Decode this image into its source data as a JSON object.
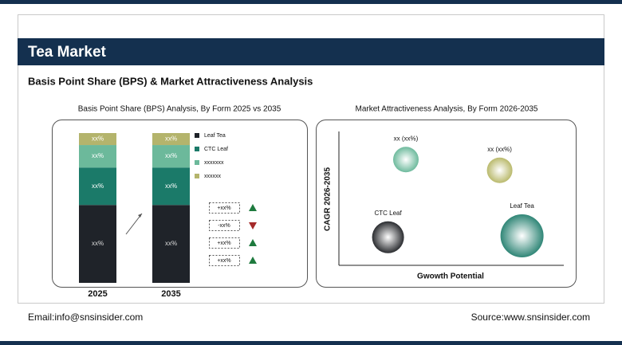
{
  "header": {
    "title": "Tea Market",
    "subtitle": "Basis Point Share (BPS) & Market Attractiveness Analysis"
  },
  "chart_data": [
    {
      "type": "stacked-bar",
      "title": "Basis Point Share (BPS) Analysis, By Form 2025 vs 2035",
      "categories": [
        "2025",
        "2035"
      ],
      "ylim": [
        0,
        100
      ],
      "series": [
        {
          "name": "Leaf Tea",
          "color": "#1f2329",
          "values": [
            52,
            52
          ],
          "value_labels": [
            "xx%",
            "xx%"
          ]
        },
        {
          "name": "CTC Leaf",
          "color": "#1b7a69",
          "values": [
            25,
            25
          ],
          "value_labels": [
            "xx%",
            "xx%"
          ]
        },
        {
          "name": "xxxxxxx",
          "color": "#6cb99b",
          "values": [
            15,
            15
          ],
          "value_labels": [
            "xx%",
            "xx%"
          ]
        },
        {
          "name": "xxxxxx",
          "color": "#b4b46c",
          "values": [
            8,
            8
          ],
          "value_labels": [
            "xx%",
            "xx%"
          ]
        }
      ],
      "changes": [
        {
          "label": "+xx%",
          "direction": "up"
        },
        {
          "label": "-xx%",
          "direction": "down"
        },
        {
          "label": "+xx%",
          "direction": "up"
        },
        {
          "label": "+xx%",
          "direction": "up"
        }
      ]
    },
    {
      "type": "bubble",
      "title": "Market Attractiveness Analysis, By Form 2026-2035",
      "x_label": "Gwowth Potential",
      "y_label": "CAGR 2026-2035",
      "xlim": [
        0,
        100
      ],
      "ylim": [
        0,
        100
      ],
      "points": [
        {
          "label": "xx (xx%)",
          "x": 30,
          "y": 79,
          "size": 16,
          "color": "#5fb393"
        },
        {
          "label": "xx (xx%)",
          "x": 72,
          "y": 71,
          "size": 16,
          "color": "#b3b35e"
        },
        {
          "label": "CTC Leaf",
          "x": 22,
          "y": 21,
          "size": 20,
          "color": "#15171b"
        },
        {
          "label": "Leaf Tea",
          "x": 82,
          "y": 22,
          "size": 27,
          "color": "#1b7a69"
        }
      ]
    }
  ],
  "footer": {
    "email": "Email:info@snsinsider.com",
    "source": "Source:www.snsinsider.com"
  }
}
